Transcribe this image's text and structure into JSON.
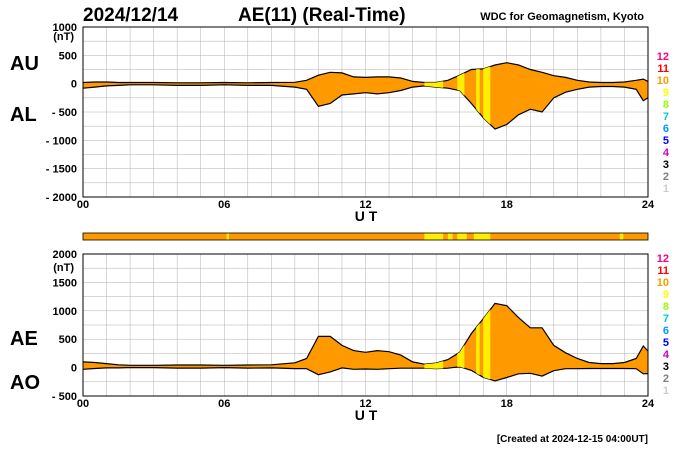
{
  "header": {
    "date": "2024/12/14",
    "title": "AE(11) (Real-Time)",
    "source": "WDC for Geomagnetism, Kyoto"
  },
  "footer": {
    "created": "[Created at 2024-12-15 04:00UT]"
  },
  "legend": {
    "labels": [
      "12",
      "11",
      "10",
      "9",
      "8",
      "7",
      "6",
      "5",
      "4",
      "3",
      "2",
      "1"
    ],
    "colors": [
      "#ff0080",
      "#ff0000",
      "#ff9900",
      "#ffff00",
      "#99ff00",
      "#00cccc",
      "#0099ff",
      "#0000ff",
      "#cc00cc",
      "#000000",
      "#808080",
      "#cccccc"
    ]
  },
  "colors": {
    "fill_main": "#ff9900",
    "fill_yellow": "#ffee00",
    "line": "#000000",
    "grid": "#b0b0b0"
  },
  "chart_data": [
    {
      "type": "area",
      "title": "AU / AL",
      "xlabel": "U T",
      "ylabel": "(nT)",
      "upper_label": "AU",
      "lower_label": "AL",
      "xlim": [
        0,
        24
      ],
      "ylim": [
        -2000,
        1000
      ],
      "xticks": [
        "00",
        "06",
        "12",
        "18",
        "24"
      ],
      "yticks": [
        1000,
        500,
        0,
        -500,
        -1000,
        -1500,
        -2000
      ],
      "ytick_labels": [
        "1000",
        "500",
        "0",
        "- 500",
        "- 1000",
        "- 1500",
        "- 2000"
      ],
      "x": [
        0,
        0.5,
        1,
        1.5,
        2,
        3,
        4,
        5,
        6,
        7,
        8,
        9,
        9.5,
        10,
        10.5,
        11,
        11.5,
        12,
        12.5,
        13,
        13.5,
        14,
        14.5,
        15,
        15.5,
        16,
        16.5,
        17,
        17.5,
        18,
        18.5,
        19,
        19.5,
        20,
        20.5,
        21,
        21.5,
        22,
        22.5,
        23,
        23.5,
        23.8,
        24
      ],
      "series": [
        {
          "name": "AU",
          "values": [
            20,
            30,
            30,
            20,
            20,
            20,
            15,
            15,
            20,
            15,
            20,
            25,
            60,
            150,
            200,
            190,
            120,
            110,
            120,
            120,
            100,
            40,
            20,
            20,
            60,
            150,
            250,
            260,
            330,
            370,
            330,
            250,
            200,
            140,
            110,
            60,
            30,
            20,
            20,
            30,
            60,
            80,
            40
          ]
        },
        {
          "name": "AL",
          "values": [
            -80,
            -60,
            -40,
            -30,
            -20,
            -20,
            -30,
            -30,
            -20,
            -30,
            -30,
            -60,
            -100,
            -400,
            -350,
            -200,
            -180,
            -160,
            -180,
            -160,
            -120,
            -60,
            -40,
            -60,
            -80,
            -120,
            -350,
            -600,
            -800,
            -720,
            -550,
            -450,
            -500,
            -250,
            -150,
            -100,
            -60,
            -50,
            -50,
            -60,
            -100,
            -300,
            -250
          ]
        }
      ],
      "yellow_intervals": [
        [
          14.5,
          15.3
        ],
        [
          15.9,
          16.2
        ],
        [
          16.7,
          16.85
        ],
        [
          17.0,
          17.3
        ]
      ]
    },
    {
      "type": "area",
      "title": "AE / AO",
      "xlabel": "U T",
      "ylabel": "(nT)",
      "upper_label": "AE",
      "lower_label": "AO",
      "xlim": [
        0,
        24
      ],
      "ylim": [
        -500,
        2000
      ],
      "xticks": [
        "00",
        "06",
        "12",
        "18",
        "24"
      ],
      "yticks": [
        2000,
        1500,
        1000,
        500,
        0,
        -500
      ],
      "ytick_labels": [
        "2000",
        "1500",
        "1000",
        "500",
        "0",
        "- 500"
      ],
      "x": [
        0,
        0.5,
        1,
        1.5,
        2,
        3,
        4,
        5,
        6,
        7,
        8,
        9,
        9.5,
        10,
        10.5,
        11,
        11.5,
        12,
        12.5,
        13,
        13.5,
        14,
        14.5,
        15,
        15.5,
        16,
        16.5,
        17,
        17.5,
        18,
        18.5,
        19,
        19.5,
        20,
        20.5,
        21,
        21.5,
        22,
        22.5,
        23,
        23.5,
        23.8,
        24
      ],
      "series": [
        {
          "name": "AE",
          "values": [
            100,
            90,
            70,
            50,
            40,
            40,
            45,
            45,
            40,
            45,
            50,
            85,
            160,
            550,
            550,
            390,
            300,
            270,
            300,
            280,
            220,
            100,
            60,
            80,
            140,
            270,
            600,
            860,
            1130,
            1090,
            880,
            700,
            700,
            390,
            260,
            160,
            90,
            70,
            70,
            90,
            160,
            380,
            290
          ]
        },
        {
          "name": "AO",
          "values": [
            -30,
            -15,
            -5,
            -5,
            0,
            0,
            -8,
            -8,
            0,
            -8,
            -5,
            -18,
            -20,
            -125,
            -75,
            -5,
            -30,
            -25,
            -30,
            -20,
            -10,
            -10,
            -10,
            -20,
            -10,
            15,
            -50,
            -170,
            -235,
            -175,
            -110,
            -100,
            -150,
            -55,
            -20,
            -20,
            -15,
            -15,
            -15,
            -15,
            -20,
            -110,
            -105
          ]
        }
      ],
      "yellow_intervals": [
        [
          14.5,
          15.3
        ],
        [
          15.9,
          16.2
        ],
        [
          16.7,
          16.85
        ],
        [
          17.0,
          17.3
        ]
      ]
    }
  ],
  "status_bar": {
    "segments": [
      [
        6.1,
        6.2,
        "yellow"
      ],
      [
        14.5,
        15.3,
        "yellow"
      ],
      [
        15.5,
        15.7,
        "yellow"
      ],
      [
        15.9,
        16.3,
        "yellow"
      ],
      [
        16.6,
        17.3,
        "yellow"
      ],
      [
        22.8,
        22.95,
        "yellow"
      ]
    ]
  }
}
